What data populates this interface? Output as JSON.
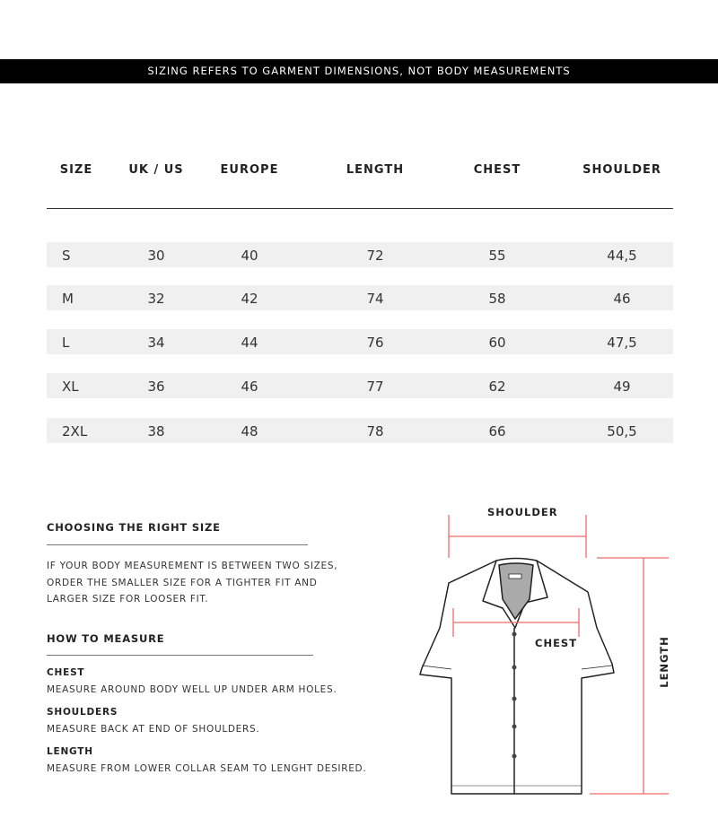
{
  "banner": "SIZING REFERS TO GARMENT DIMENSIONS, NOT BODY MEASUREMENTS",
  "table": {
    "headers": [
      "SIZE",
      "UK / US",
      "EUROPE",
      "LENGTH",
      "CHEST",
      "SHOULDER"
    ],
    "rows": [
      [
        "S",
        "30",
        "40",
        "72",
        "55",
        "44,5"
      ],
      [
        "M",
        "32",
        "42",
        "74",
        "58",
        "46"
      ],
      [
        "L",
        "34",
        "44",
        "76",
        "60",
        "47,5"
      ],
      [
        "XL",
        "36",
        "46",
        "77",
        "62",
        "49"
      ],
      [
        "2XL",
        "38",
        "48",
        "78",
        "66",
        "50,5"
      ]
    ]
  },
  "choosing": {
    "title": "CHOOSING THE RIGHT SIZE",
    "lines": [
      "IF YOUR BODY MEASUREMENT IS BETWEEN TWO SIZES,",
      "ORDER THE SMALLER SIZE FOR A TIGHTER FIT AND",
      "LARGER SIZE FOR LOOSER FIT."
    ]
  },
  "measure": {
    "title": "HOW TO MEASURE",
    "items": [
      {
        "label": "CHEST",
        "text": "MEASURE AROUND BODY WELL UP UNDER ARM HOLES."
      },
      {
        "label": "SHOULDERS",
        "text": "MEASURE BACK AT END OF SHOULDERS."
      },
      {
        "label": "LENGTH",
        "text": "MEASURE FROM LOWER COLLAR SEAM TO LENGHT DESIRED."
      }
    ]
  },
  "diagram": {
    "shoulder": "SHOULDER",
    "chest": "CHEST",
    "length": "LENGTH",
    "accent": "#f06a6a"
  }
}
